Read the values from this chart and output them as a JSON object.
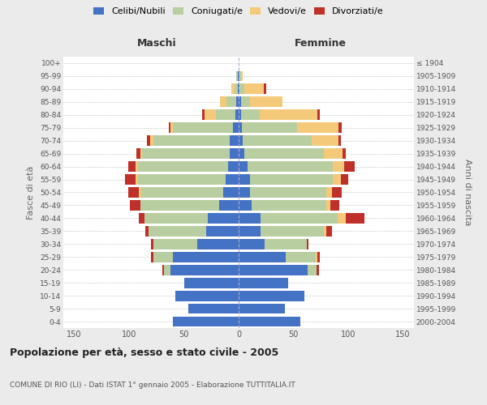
{
  "age_groups": [
    "0-4",
    "5-9",
    "10-14",
    "15-19",
    "20-24",
    "25-29",
    "30-34",
    "35-39",
    "40-44",
    "45-49",
    "50-54",
    "55-59",
    "60-64",
    "65-69",
    "70-74",
    "75-79",
    "80-84",
    "85-89",
    "90-94",
    "95-99",
    "100+"
  ],
  "birth_years": [
    "2000-2004",
    "1995-1999",
    "1990-1994",
    "1985-1989",
    "1980-1984",
    "1975-1979",
    "1970-1974",
    "1965-1969",
    "1960-1964",
    "1955-1959",
    "1950-1954",
    "1945-1949",
    "1940-1944",
    "1935-1939",
    "1930-1934",
    "1925-1929",
    "1920-1924",
    "1915-1919",
    "1910-1914",
    "1905-1909",
    "≤ 1904"
  ],
  "maschi_celibi": [
    60,
    46,
    58,
    50,
    62,
    60,
    38,
    30,
    28,
    18,
    14,
    12,
    10,
    8,
    8,
    5,
    3,
    2,
    1,
    1,
    0
  ],
  "maschi_coniugati": [
    0,
    0,
    0,
    0,
    6,
    18,
    40,
    52,
    58,
    72,
    75,
    80,
    82,
    80,
    70,
    55,
    18,
    9,
    3,
    1,
    0
  ],
  "maschi_vedovi": [
    0,
    0,
    0,
    0,
    0,
    0,
    0,
    0,
    0,
    0,
    2,
    2,
    2,
    2,
    3,
    2,
    10,
    6,
    3,
    0,
    0
  ],
  "maschi_divorziati": [
    0,
    0,
    0,
    0,
    2,
    2,
    2,
    3,
    5,
    9,
    10,
    10,
    7,
    3,
    3,
    2,
    2,
    0,
    0,
    0,
    0
  ],
  "femmine_nubili": [
    56,
    42,
    60,
    45,
    63,
    43,
    24,
    20,
    20,
    12,
    10,
    10,
    8,
    5,
    4,
    3,
    2,
    2,
    1,
    1,
    0
  ],
  "femmine_coniugate": [
    0,
    0,
    0,
    0,
    8,
    27,
    38,
    58,
    70,
    68,
    70,
    76,
    78,
    73,
    63,
    50,
    17,
    8,
    4,
    1,
    0
  ],
  "femmine_vedove": [
    0,
    0,
    0,
    0,
    0,
    2,
    0,
    2,
    8,
    4,
    5,
    7,
    10,
    17,
    24,
    38,
    53,
    30,
    18,
    2,
    0
  ],
  "femmine_divorziate": [
    0,
    0,
    0,
    0,
    2,
    2,
    2,
    5,
    17,
    8,
    9,
    7,
    10,
    3,
    2,
    3,
    2,
    0,
    2,
    0,
    0
  ],
  "colors": {
    "celibi": "#4472c4",
    "coniugati": "#b8cda0",
    "vedovi": "#f5c97a",
    "divorziati": "#c0302a"
  },
  "title": "Popolazione per età, sesso e stato civile - 2005",
  "subtitle": "COMUNE DI RIO (LI) - Dati ISTAT 1° gennaio 2005 - Elaborazione TUTTITALIA.IT",
  "xlabel_left": "Maschi",
  "xlabel_right": "Femmine",
  "ylabel_left": "Fasce di età",
  "ylabel_right": "Anni di nascita",
  "xlim": 160,
  "bg_color": "#ebebeb",
  "plot_bg": "#ffffff"
}
